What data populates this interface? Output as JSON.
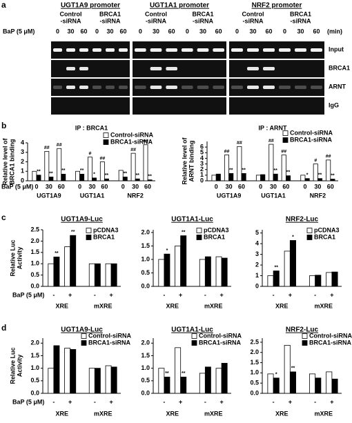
{
  "panel_labels": [
    "a",
    "b",
    "c",
    "d"
  ],
  "gel": {
    "promoters": [
      "UGT1A9 promoter",
      "UGT1A1 promoter",
      "NRF2 promoter"
    ],
    "treatment_groups": [
      [
        "Control",
        "-siRNA"
      ],
      [
        "BRCA1",
        "-siRNA"
      ]
    ],
    "bap_label": "BaP (5 μM)",
    "times": [
      "0",
      "30",
      "60"
    ],
    "time_unit": "(min)",
    "rows": [
      "Input",
      "BRCA1",
      "ARNT",
      "IgG"
    ]
  },
  "chart_data": [
    {
      "type": "bar",
      "title": "IP : BRCA1",
      "ylabel": [
        "Relative level of",
        "BRCA1 binding"
      ],
      "bap_label": "BaP (5 μM)",
      "categories": [
        "0",
        "30",
        "60",
        "0",
        "30",
        "60",
        "0",
        "30",
        "60"
      ],
      "groups": [
        "UGT1A9",
        "UGT1A1",
        "NRF2"
      ],
      "series": [
        {
          "name": "Control-siRNA",
          "color": "#ffffff",
          "values": [
            1.0,
            3.1,
            3.4,
            1.0,
            2.5,
            2.0,
            1.1,
            2.9,
            3.8
          ],
          "marks": [
            null,
            "##",
            "##",
            null,
            "#",
            "##",
            null,
            "##",
            "##"
          ]
        },
        {
          "name": "BRCA1-siRNA",
          "color": "#000000",
          "values": [
            0.6,
            0.4,
            0.7,
            0.7,
            0.3,
            0.2,
            0.4,
            0.2,
            0.1
          ],
          "marks": [
            "**",
            "**",
            "**",
            "**",
            "*",
            "**",
            "**",
            "**",
            "**"
          ]
        }
      ],
      "ylim": [
        0,
        4
      ],
      "yticks": [
        0,
        1,
        2,
        3,
        4
      ],
      "legend": "top-right"
    },
    {
      "type": "bar",
      "title": "IP : ARNT",
      "ylabel": [
        "Relative level of",
        "ARNT binding"
      ],
      "categories": [
        "0",
        "30",
        "60",
        "0",
        "30",
        "60",
        "0",
        "30",
        "60"
      ],
      "groups": [
        "UGT1A9",
        "UGT1A1",
        "NRF2"
      ],
      "series": [
        {
          "name": "Control-siRNA",
          "color": "#ffffff",
          "values": [
            1.0,
            4.6,
            6.1,
            1.0,
            6.5,
            4.6,
            1.0,
            3.0,
            3.7
          ],
          "marks": [
            null,
            "##",
            "##",
            null,
            "##",
            "##",
            null,
            "#",
            "##"
          ]
        },
        {
          "name": "BRCA1-siRNA",
          "color": "#000000",
          "values": [
            1.2,
            1.3,
            1.3,
            1.1,
            1.2,
            0.9,
            0.4,
            0.4,
            0.3
          ],
          "marks": [
            null,
            "**",
            "**",
            null,
            "**",
            "**",
            "*",
            "**",
            "**"
          ]
        }
      ],
      "ylim": [
        0,
        7
      ],
      "yticks": [
        0,
        1,
        2,
        3,
        4,
        5,
        6
      ],
      "legend": "top-right"
    },
    {
      "type": "bar",
      "title": "UGT1A9-Luc",
      "ylabel": [
        "Relative Luc",
        "Activity"
      ],
      "bap_label": "BaP (5 μM)",
      "categories": [
        "-",
        "+",
        "-",
        "+"
      ],
      "groups": [
        "XRE",
        "mXRE"
      ],
      "series": [
        {
          "name": "pCDNA3",
          "color": "#ffffff",
          "values": [
            1.0,
            1.75,
            1.0,
            1.0
          ]
        },
        {
          "name": "BRCA1",
          "color": "#000000",
          "values": [
            1.3,
            2.25,
            1.0,
            1.0
          ],
          "marks": [
            "**",
            "**",
            null,
            null
          ]
        }
      ],
      "ylim": [
        0,
        2.5
      ],
      "yticks": [
        {
          "value": 0,
          "label": "0.0"
        },
        0.5,
        {
          "value": 1,
          "label": "1.0"
        },
        1.5,
        {
          "value": 2,
          "label": "2.0"
        },
        2.5
      ],
      "legend": "top-right"
    },
    {
      "type": "bar",
      "title": "UGT1A1-Luc",
      "categories": [
        "-",
        "+",
        "-",
        "+"
      ],
      "groups": [
        "XRE",
        "mXRE"
      ],
      "series": [
        {
          "name": "pCDNA3",
          "color": "#ffffff",
          "values": [
            1.0,
            1.5,
            1.0,
            1.1
          ]
        },
        {
          "name": "BRCA1",
          "color": "#000000",
          "values": [
            1.2,
            1.88,
            1.1,
            1.05
          ],
          "marks": [
            "*",
            "**",
            null,
            null
          ]
        }
      ],
      "ylim": [
        0,
        2.1
      ],
      "yticks": [
        {
          "value": 0,
          "label": "0.0"
        },
        0.5,
        {
          "value": 1,
          "label": "1.0"
        },
        1.5,
        {
          "value": 2,
          "label": "2.0"
        }
      ],
      "legend": "top-right"
    },
    {
      "type": "bar",
      "title": "NRF2-Luc",
      "categories": [
        "-",
        "+",
        "-",
        "+"
      ],
      "groups": [
        "XRE",
        "mXRE"
      ],
      "series": [
        {
          "name": "pCDNA3",
          "color": "#ffffff",
          "values": [
            1.0,
            3.3,
            1.0,
            1.3
          ]
        },
        {
          "name": "BRCA1",
          "color": "#000000",
          "values": [
            1.45,
            4.3,
            1.05,
            1.35
          ],
          "marks": [
            "**",
            "*",
            null,
            null
          ]
        }
      ],
      "ylim": [
        0,
        5.3
      ],
      "yticks": [
        0,
        1,
        2,
        3,
        4,
        5
      ],
      "legend": "top-right"
    },
    {
      "type": "bar",
      "title": "UGT1A9-Luc",
      "ylabel": [
        "Relative Luc",
        "Activity"
      ],
      "bap_label": "BaP (5 μM)",
      "categories": [
        "-",
        "+",
        "-",
        "+"
      ],
      "groups": [
        "XRE",
        "mXRE"
      ],
      "series": [
        {
          "name": "Control-siRNA",
          "color": "#ffffff",
          "values": [
            1.0,
            1.8,
            1.0,
            1.1
          ]
        },
        {
          "name": "BRCA1-siRNA",
          "color": "#000000",
          "values": [
            1.9,
            1.75,
            1.0,
            1.05
          ]
        }
      ],
      "ylim": [
        0,
        2.2
      ],
      "yticks": [
        {
          "value": 0,
          "label": "0.0"
        },
        0.5,
        {
          "value": 1,
          "label": "1.0"
        },
        1.5,
        {
          "value": 2,
          "label": "2.0"
        }
      ],
      "legend": "top-right"
    },
    {
      "type": "bar",
      "title": "UGT1A1-Luc",
      "categories": [
        "-",
        "+",
        "-",
        "+"
      ],
      "groups": [
        "XRE",
        "mXRE"
      ],
      "series": [
        {
          "name": "Control-siRNA",
          "color": "#ffffff",
          "values": [
            1.0,
            1.82,
            0.8,
            1.0
          ]
        },
        {
          "name": "BRCA1-siRNA",
          "color": "#000000",
          "values": [
            0.65,
            0.65,
            1.05,
            1.2
          ],
          "marks": [
            "**",
            "**",
            null,
            null
          ]
        }
      ],
      "ylim": [
        0,
        2.2
      ],
      "yticks": [
        {
          "value": 0,
          "label": "0.0"
        },
        0.5,
        {
          "value": 1,
          "label": "1.0"
        },
        1.5,
        {
          "value": 2,
          "label": "2.0"
        }
      ],
      "legend": "top-right"
    },
    {
      "type": "bar",
      "title": "NRF2-Luc",
      "categories": [
        "-",
        "+",
        "-",
        "+"
      ],
      "groups": [
        "XRE",
        "mXRE"
      ],
      "series": [
        {
          "name": "Control-siRNA",
          "color": "#ffffff",
          "values": [
            0.95,
            2.35,
            0.95,
            1.05
          ]
        },
        {
          "name": "BRCA1-siRNA",
          "color": "#000000",
          "values": [
            0.75,
            1.05,
            0.75,
            0.7
          ],
          "marks": [
            "*",
            "**",
            null,
            null
          ]
        }
      ],
      "ylim": [
        0,
        2.7
      ],
      "yticks": [
        {
          "value": 0,
          "label": "0.0"
        },
        0.5,
        {
          "value": 1,
          "label": "1.0"
        },
        1.5,
        {
          "value": 2,
          "label": "2.0"
        },
        2.5
      ],
      "legend": "top-right"
    }
  ]
}
